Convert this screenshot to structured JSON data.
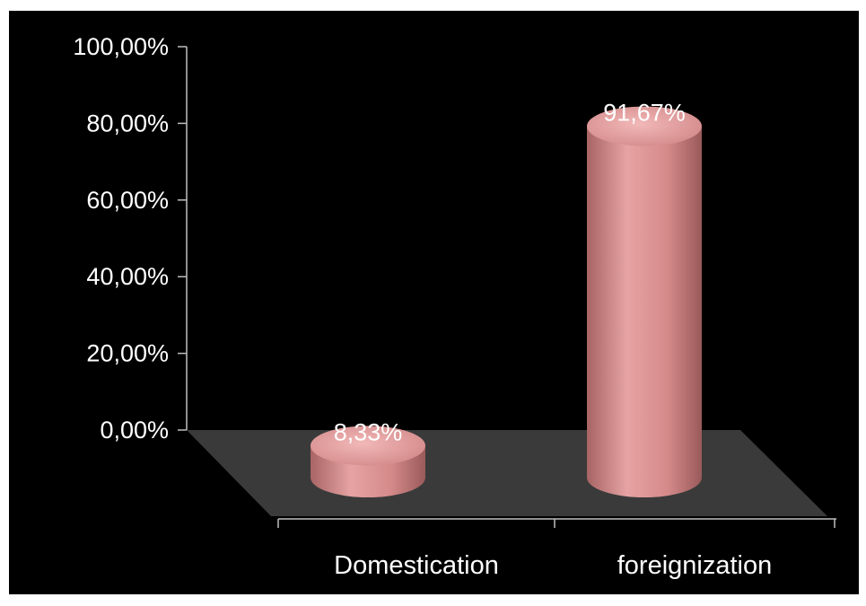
{
  "chart_data": {
    "type": "bar",
    "style": "3d-cylinder",
    "categories": [
      "Domestication",
      "foreignization"
    ],
    "values": [
      8.33,
      91.67
    ],
    "value_labels": [
      "8,33%",
      "91,67%"
    ],
    "y_ticks": [
      "0,00%",
      "20,00%",
      "40,00%",
      "60,00%",
      "80,00%",
      "100,00%"
    ],
    "ylim": [
      0,
      100
    ],
    "colors": {
      "background": "#000000",
      "floor": "#3a3a3a",
      "bar": "#d98f8f",
      "bar_dark": "#a86464",
      "bar_top": "#e8a8a8",
      "text": "#ffffff",
      "axis": "#bfbfbf"
    }
  }
}
